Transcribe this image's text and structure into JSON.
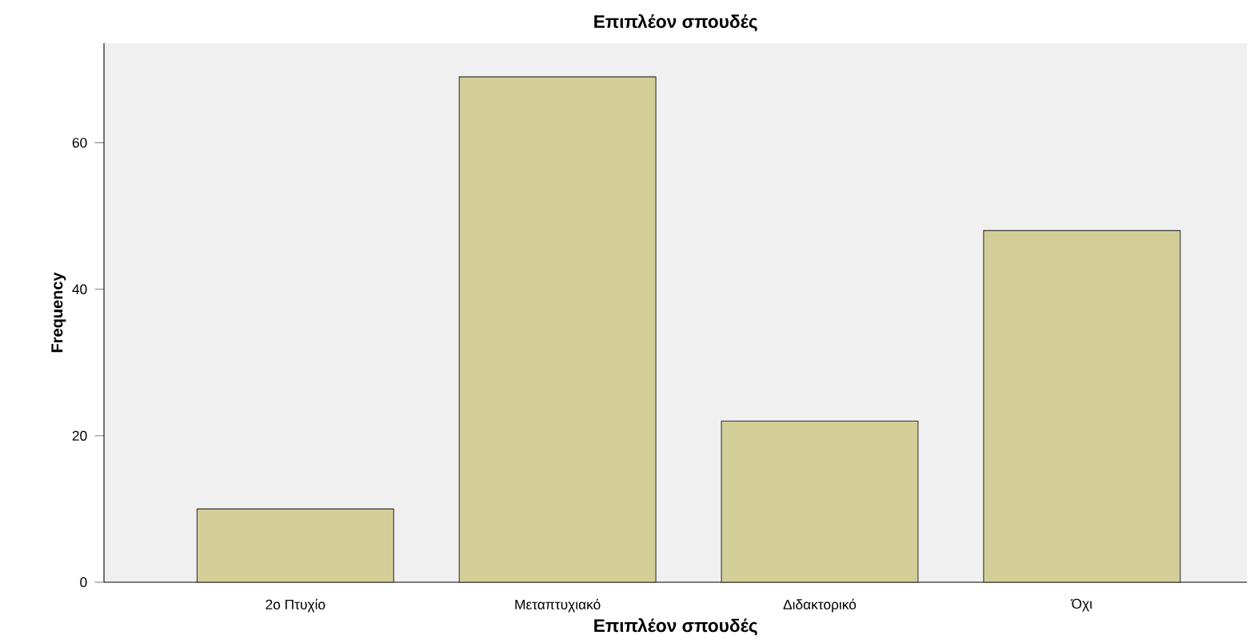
{
  "chart_data": {
    "type": "bar",
    "title": "Επιπλέον σπουδές",
    "xlabel": "Επιπλέον σπουδές",
    "ylabel": "Frequency",
    "categories": [
      "2ο Πτυχίο",
      "Μεταπτυχιακό",
      "Διδακτορικό",
      "Όχι"
    ],
    "values": [
      10,
      69,
      22,
      48
    ],
    "color": "#d3ce97",
    "ylim": [
      0,
      73.6
    ],
    "yticks": [
      0,
      20,
      40,
      60
    ],
    "grid": false
  }
}
